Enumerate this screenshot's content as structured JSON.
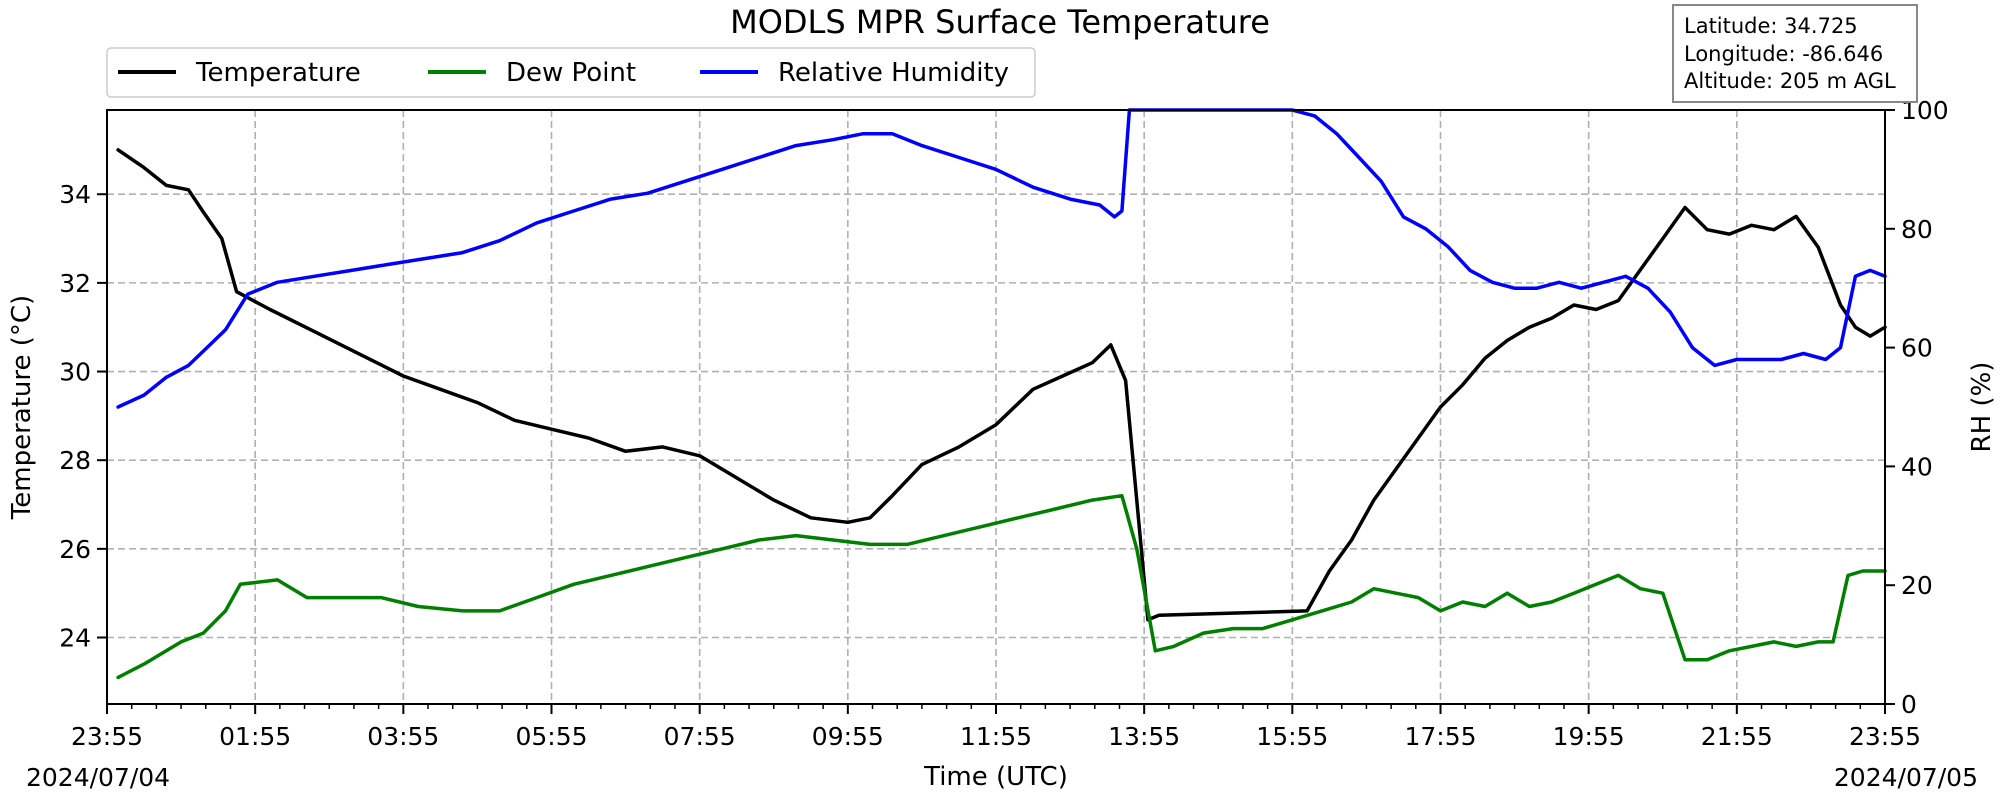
{
  "chart_data": {
    "type": "line",
    "title": "MODLS MPR Surface Temperature",
    "xlabel": "Time (UTC)",
    "ylabel": "Temperature ($^\\circ$C)",
    "ylabel_display": "Temperature (°C)",
    "y2label": "RH (%)",
    "x_tick_labels": [
      "23:55",
      "01:55",
      "03:55",
      "05:55",
      "07:55",
      "09:55",
      "11:55",
      "13:55",
      "15:55",
      "17:55",
      "19:55",
      "21:55",
      "23:55"
    ],
    "x_hours": [
      0,
      2,
      4,
      6,
      8,
      10,
      12,
      14,
      16,
      18,
      20,
      22,
      24
    ],
    "start_date": "2024/07/04",
    "end_date": "2024/07/05",
    "xlim": [
      0,
      24
    ],
    "ylim": [
      22.5,
      35.9
    ],
    "y_ticks": [
      24,
      26,
      28,
      30,
      32,
      34
    ],
    "y2lim": [
      0,
      100
    ],
    "y2_ticks": [
      0,
      20,
      40,
      60,
      80,
      100
    ],
    "grid": true,
    "legend_position": "top-left",
    "info_box": {
      "latitude": "Latitude: 34.725",
      "longitude": "Longitude: -86.646",
      "altitude": "Altitude: 205 m AGL"
    },
    "series": [
      {
        "name": "Temperature",
        "axis": "left",
        "color": "#000000",
        "x": [
          0.15,
          0.5,
          0.8,
          1.1,
          1.3,
          1.55,
          1.75,
          2.2,
          2.8,
          3.4,
          4.0,
          4.5,
          5.0,
          5.5,
          6.0,
          6.5,
          7.0,
          7.5,
          8.0,
          8.5,
          9.0,
          9.5,
          10.0,
          10.3,
          10.6,
          11.0,
          11.5,
          12.0,
          12.5,
          12.9,
          13.3,
          13.55,
          13.75,
          14.05,
          14.2,
          16.2,
          16.5,
          16.8,
          17.1,
          17.4,
          17.7,
          18.0,
          18.3,
          18.6,
          18.9,
          19.2,
          19.5,
          19.8,
          20.1,
          20.4,
          20.7,
          21.0,
          21.3,
          21.6,
          21.9,
          22.2,
          22.5,
          22.8,
          23.1,
          23.4,
          23.6,
          23.8,
          24.0
        ],
        "y": [
          35.0,
          34.6,
          34.2,
          34.1,
          33.6,
          33.0,
          31.8,
          31.4,
          30.9,
          30.4,
          29.9,
          29.6,
          29.3,
          28.9,
          28.7,
          28.5,
          28.2,
          28.3,
          28.1,
          27.6,
          27.1,
          26.7,
          26.6,
          26.7,
          27.2,
          27.9,
          28.3,
          28.8,
          29.6,
          29.9,
          30.2,
          30.6,
          29.8,
          24.4,
          24.5,
          24.6,
          25.5,
          26.2,
          27.1,
          27.8,
          28.5,
          29.2,
          29.7,
          30.3,
          30.7,
          31.0,
          31.2,
          31.5,
          31.4,
          31.6,
          32.3,
          33.0,
          33.7,
          33.2,
          33.1,
          33.3,
          33.2,
          33.5,
          32.8,
          31.5,
          31.0,
          30.8,
          31.0
        ]
      },
      {
        "name": "Dew Point",
        "axis": "left",
        "color": "#007f00",
        "x": [
          0.15,
          0.5,
          0.8,
          1.0,
          1.3,
          1.6,
          1.8,
          2.3,
          2.7,
          3.2,
          3.7,
          4.2,
          4.8,
          5.3,
          5.8,
          6.3,
          6.8,
          7.3,
          7.8,
          8.3,
          8.8,
          9.3,
          9.8,
          10.3,
          10.8,
          11.3,
          11.8,
          12.3,
          12.8,
          13.3,
          13.7,
          13.9,
          14.15,
          14.4,
          14.8,
          15.2,
          15.6,
          16.0,
          16.4,
          16.8,
          17.1,
          17.4,
          17.7,
          18.0,
          18.3,
          18.6,
          18.9,
          19.2,
          19.5,
          19.8,
          20.1,
          20.4,
          20.7,
          21.0,
          21.3,
          21.6,
          21.9,
          22.2,
          22.5,
          22.8,
          23.1,
          23.3,
          23.5,
          23.7,
          24.0
        ],
        "y": [
          23.1,
          23.4,
          23.7,
          23.9,
          24.1,
          24.6,
          25.2,
          25.3,
          24.9,
          24.9,
          24.9,
          24.7,
          24.6,
          24.6,
          24.9,
          25.2,
          25.4,
          25.6,
          25.8,
          26.0,
          26.2,
          26.3,
          26.2,
          26.1,
          26.1,
          26.3,
          26.5,
          26.7,
          26.9,
          27.1,
          27.2,
          26.0,
          23.7,
          23.8,
          24.1,
          24.2,
          24.2,
          24.4,
          24.6,
          24.8,
          25.1,
          25.0,
          24.9,
          24.6,
          24.8,
          24.7,
          25.0,
          24.7,
          24.8,
          25.0,
          25.2,
          25.4,
          25.1,
          25.0,
          23.5,
          23.5,
          23.7,
          23.8,
          23.9,
          23.8,
          23.9,
          23.9,
          25.4,
          25.5,
          25.5
        ]
      },
      {
        "name": "Relative Humidity",
        "axis": "right",
        "color": "#0000ff",
        "x": [
          0.15,
          0.5,
          0.8,
          1.1,
          1.35,
          1.6,
          1.9,
          2.3,
          2.8,
          3.3,
          3.8,
          4.3,
          4.8,
          5.3,
          5.8,
          6.3,
          6.8,
          7.3,
          7.8,
          8.3,
          8.8,
          9.3,
          9.8,
          10.2,
          10.6,
          11.0,
          11.5,
          12.0,
          12.5,
          13.0,
          13.4,
          13.6,
          13.7,
          13.8,
          14.0,
          14.5,
          15.0,
          15.5,
          16.0,
          16.3,
          16.6,
          16.9,
          17.2,
          17.5,
          17.8,
          18.1,
          18.4,
          18.7,
          19.0,
          19.3,
          19.6,
          19.9,
          20.2,
          20.5,
          20.8,
          21.1,
          21.4,
          21.7,
          22.0,
          22.3,
          22.6,
          22.9,
          23.2,
          23.4,
          23.6,
          23.8,
          24.0
        ],
        "y": [
          50,
          52,
          55,
          57,
          60,
          63,
          69,
          71,
          72,
          73,
          74,
          75,
          76,
          78,
          81,
          83,
          85,
          86,
          88,
          90,
          92,
          94,
          95,
          96,
          96,
          94,
          92,
          90,
          87,
          85,
          84,
          82,
          83,
          100,
          100,
          100,
          100,
          100,
          100,
          99,
          96,
          92,
          88,
          82,
          80,
          77,
          73,
          71,
          70,
          70,
          71,
          70,
          71,
          72,
          70,
          66,
          60,
          57,
          58,
          58,
          58,
          59,
          58,
          60,
          72,
          73,
          72
        ]
      }
    ]
  }
}
